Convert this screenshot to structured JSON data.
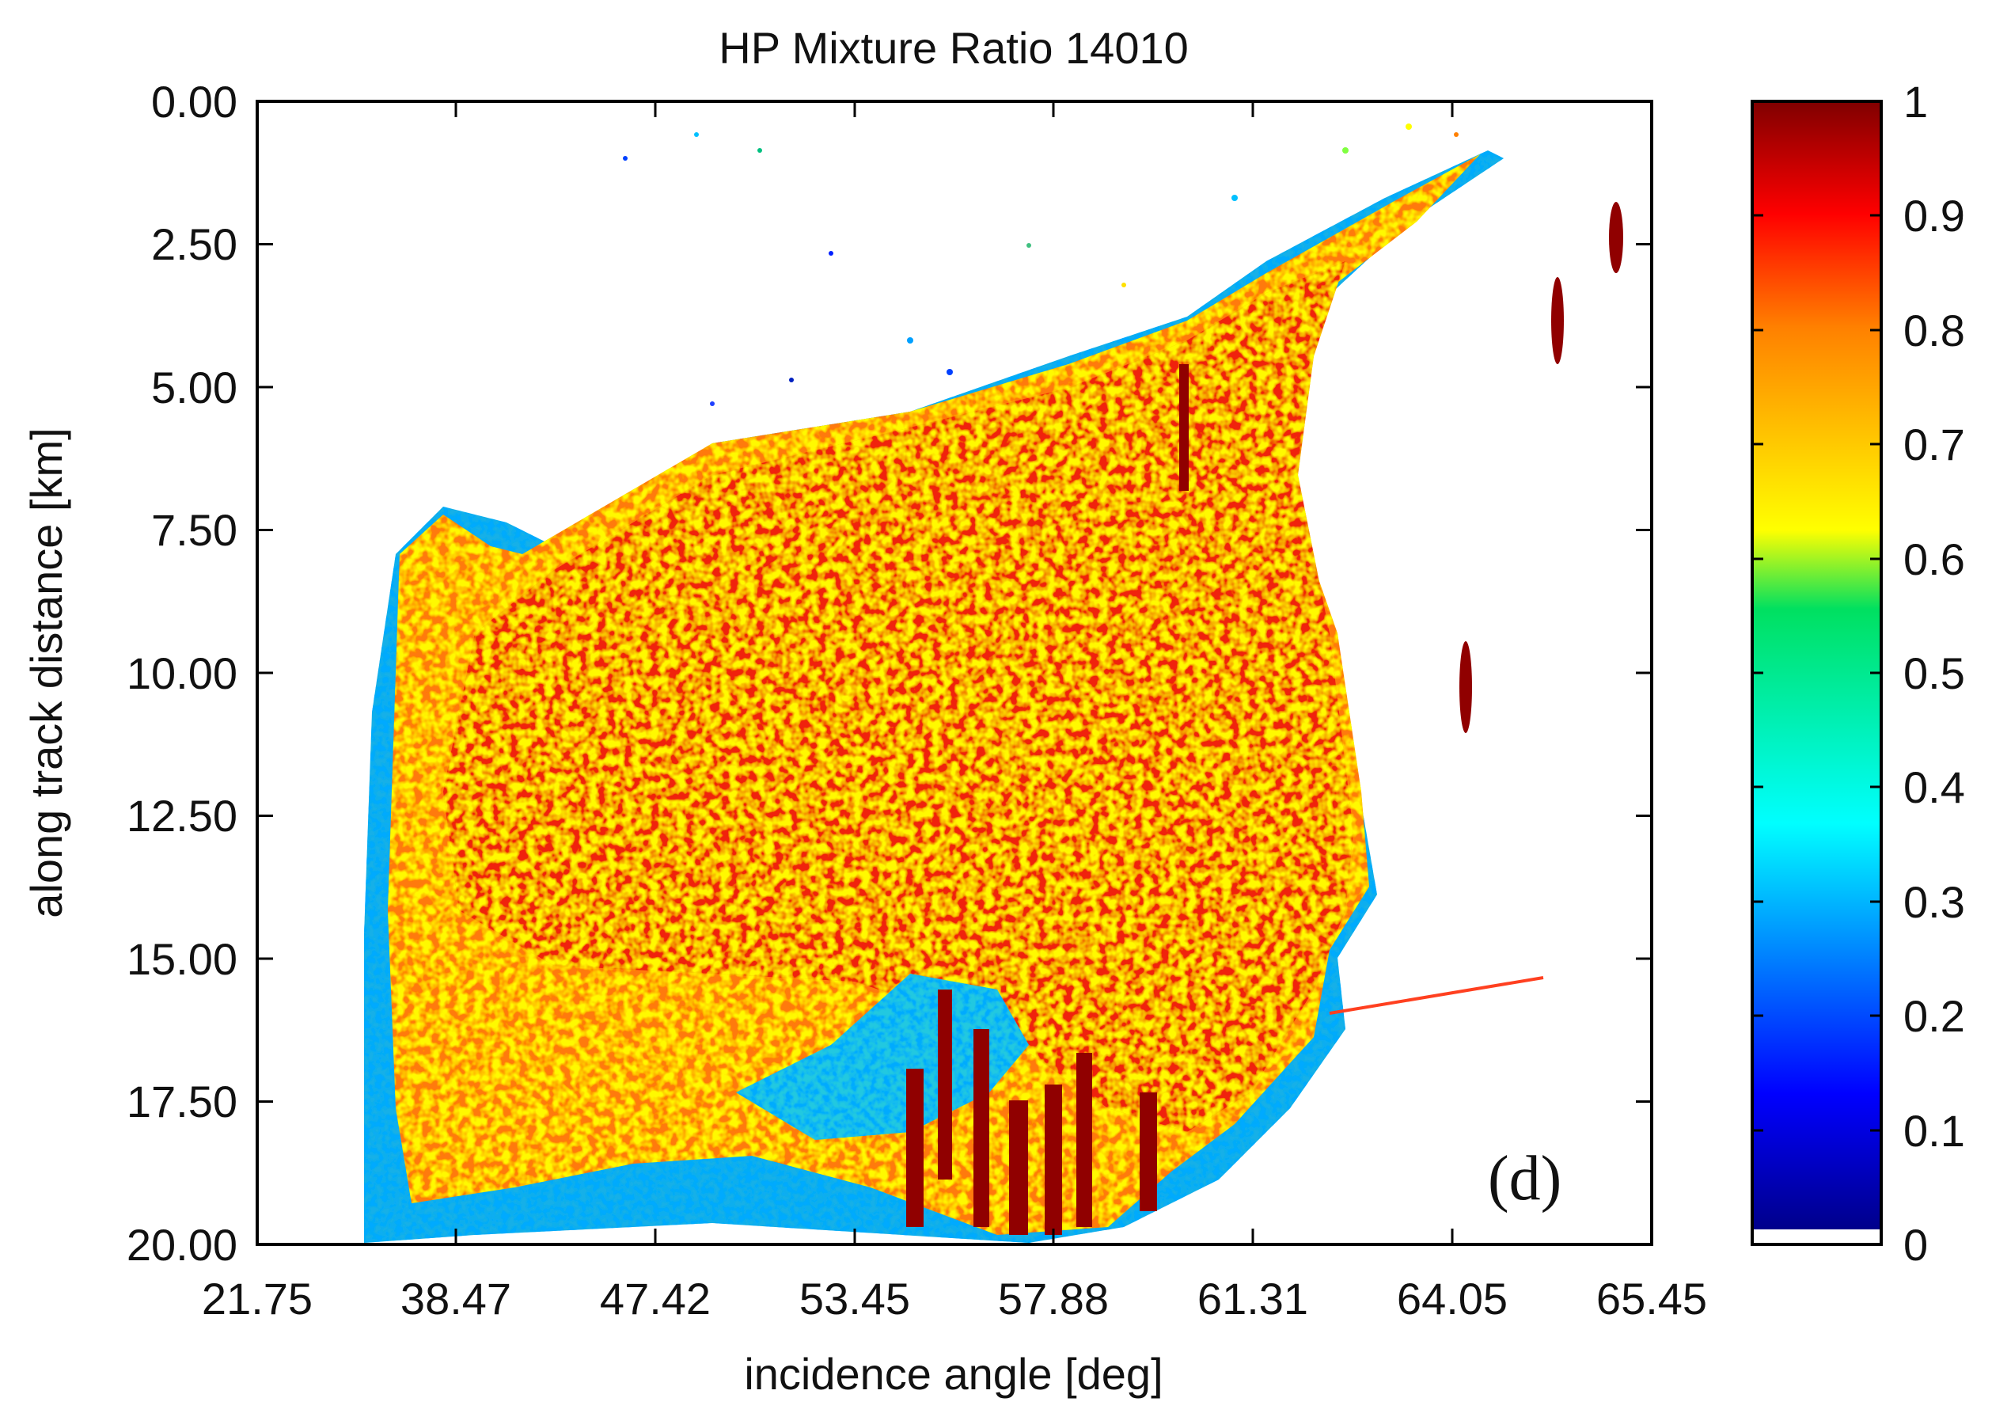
{
  "chart_data": {
    "type": "heatmap",
    "title": "HP Mixture Ratio 14010",
    "xlabel": "incidence angle [deg]",
    "ylabel": "along track distance [km]",
    "x_tick_labels": [
      "21.75",
      "38.47",
      "47.42",
      "53.45",
      "57.88",
      "61.31",
      "64.05",
      "65.45"
    ],
    "y_tick_labels": [
      "0.00",
      "2.50",
      "5.00",
      "7.50",
      "10.00",
      "12.50",
      "15.00",
      "17.50",
      "20.00"
    ],
    "ylim": [
      0,
      20
    ],
    "y_direction": "downward",
    "colorbar": {
      "min": 0,
      "max": 1,
      "tick_labels": [
        "1",
        "0.9",
        "0.8",
        "0.7",
        "0.6",
        "0.5",
        "0.4",
        "0.3",
        "0.2",
        "0.1",
        "0"
      ],
      "colormap": "jet"
    },
    "panel_label": "(d)",
    "description_values": {
      "dominant_range": [
        0.8,
        0.95
      ],
      "margin_range": [
        0.1,
        0.5
      ]
    }
  },
  "colors": {
    "dark_red": "#8b0000",
    "red": "#ff0000",
    "orange": "#ff8000",
    "yellow": "#ffff00",
    "green": "#00ff80",
    "cyan": "#00ffff",
    "blue": "#0000ff",
    "navy": "#00008b"
  }
}
